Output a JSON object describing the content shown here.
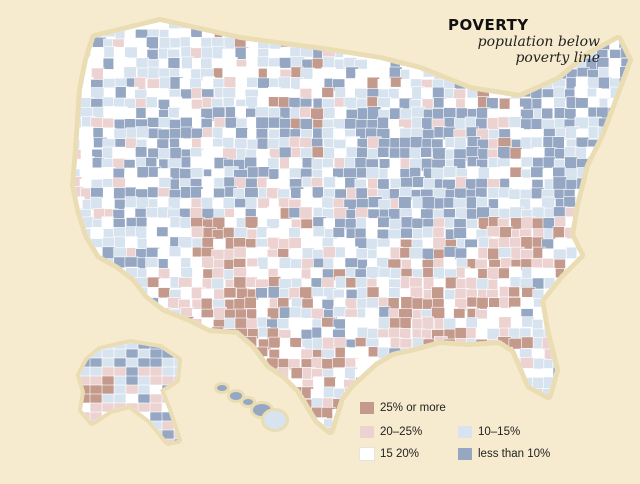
{
  "title": "POVERTY",
  "subtitle_line1": "population below",
  "subtitle_line2": "poverty line",
  "colors": {
    "background": "#f6ebce",
    "land": "#ffffff",
    "c25plus": "#c49a8d",
    "c20to25": "#ecd3d2",
    "c15to20": "#ffffff",
    "c10to15": "#d8e3f0",
    "cunder10": "#95a7c3"
  },
  "legend": {
    "items": [
      {
        "label": "25% or more",
        "color": "#c49a8d"
      },
      {
        "label": "20–25%",
        "color": "#ecd3d2"
      },
      {
        "label": "15  20%",
        "color": "#ffffff"
      },
      {
        "label": "10–15%",
        "color": "#d8e3f0"
      },
      {
        "label": "less than 10%",
        "color": "#95a7c3"
      }
    ]
  }
}
